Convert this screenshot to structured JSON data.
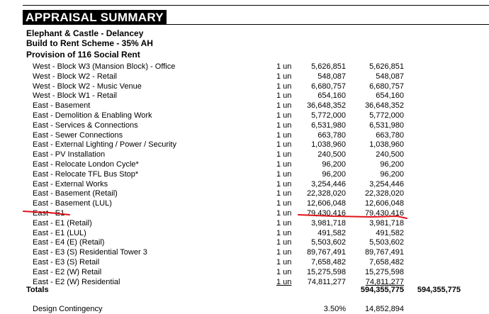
{
  "title": "APPRAISAL SUMMARY",
  "subtitle_lines": [
    "Elephant & Castle - Delancey",
    "Build to Rent Scheme - 35% AH",
    "Provision of 116 Social Rent"
  ],
  "rows": [
    {
      "label": "West - Block W3 (Mansion Block) - Office",
      "unit": "1 un",
      "amount": "5,626,851",
      "total": "5,626,851"
    },
    {
      "label": "West - Block W2 - Retail",
      "unit": "1 un",
      "amount": "548,087",
      "total": "548,087"
    },
    {
      "label": "West - Block W2 - Music Venue",
      "unit": "1 un",
      "amount": "6,680,757",
      "total": "6,680,757"
    },
    {
      "label": "West - Block W1 - Retail",
      "unit": "1 un",
      "amount": "654,160",
      "total": "654,160"
    },
    {
      "label": "East - Basement",
      "unit": "1 un",
      "amount": "36,648,352",
      "total": "36,648,352"
    },
    {
      "label": "East - Demolition & Enabling Work",
      "unit": "1 un",
      "amount": "5,772,000",
      "total": "5,772,000"
    },
    {
      "label": "East - Services & Connections",
      "unit": "1 un",
      "amount": "6,531,980",
      "total": "6,531,980"
    },
    {
      "label": "East - Sewer Connections",
      "unit": "1 un",
      "amount": "663,780",
      "total": "663,780"
    },
    {
      "label": "East - External Lighting / Power / Security",
      "unit": "1 un",
      "amount": "1,038,960",
      "total": "1,038,960"
    },
    {
      "label": "East - PV Installation",
      "unit": "1 un",
      "amount": "240,500",
      "total": "240,500"
    },
    {
      "label": "East - Relocate London Cycle*",
      "unit": "1 un",
      "amount": "96,200",
      "total": "96,200"
    },
    {
      "label": "East - Relocate TFL Bus Stop*",
      "unit": "1 un",
      "amount": "96,200",
      "total": "96,200"
    },
    {
      "label": "East - External Works",
      "unit": "1 un",
      "amount": "3,254,446",
      "total": "3,254,446"
    },
    {
      "label": "East - Basement (Retail)",
      "unit": "1 un",
      "amount": "22,328,020",
      "total": "22,328,020"
    },
    {
      "label": "East - Basement (LUL)",
      "unit": "1 un",
      "amount": "12,606,048",
      "total": "12,606,048"
    },
    {
      "label": "East - E1",
      "unit": "1 un",
      "amount": "79,430,416",
      "total": "79,430,416"
    },
    {
      "label": "East - E1 (Retail)",
      "unit": "1 un",
      "amount": "3,981,718",
      "total": "3,981,718"
    },
    {
      "label": "East - E1 (LUL)",
      "unit": "1 un",
      "amount": "491,582",
      "total": "491,582"
    },
    {
      "label": "East - E4 (E) (Retail)",
      "unit": "1 un",
      "amount": "5,503,602",
      "total": "5,503,602"
    },
    {
      "label": "East - E3 (S) Residential Tower 3",
      "unit": "1 un",
      "amount": "89,767,491",
      "total": "89,767,491"
    },
    {
      "label": "East - E3 (S) Retail",
      "unit": "1 un",
      "amount": "7,658,482",
      "total": "7,658,482"
    },
    {
      "label": "East - E2 (W) Retail",
      "unit": "1 un",
      "amount": "15,275,598",
      "total": "15,275,598"
    },
    {
      "label": "East - E2 (W) Residential",
      "unit": "1 un",
      "amount": "74,811,277",
      "total": "74,811,277"
    }
  ],
  "totals": {
    "label": "Totals",
    "amount": "594,355,775",
    "grand": "594,355,775"
  },
  "cutoff": {
    "label": "Design Contingency",
    "pct": "3.50%",
    "amount": "14,852,894"
  },
  "annotation_color": "#e0141b"
}
